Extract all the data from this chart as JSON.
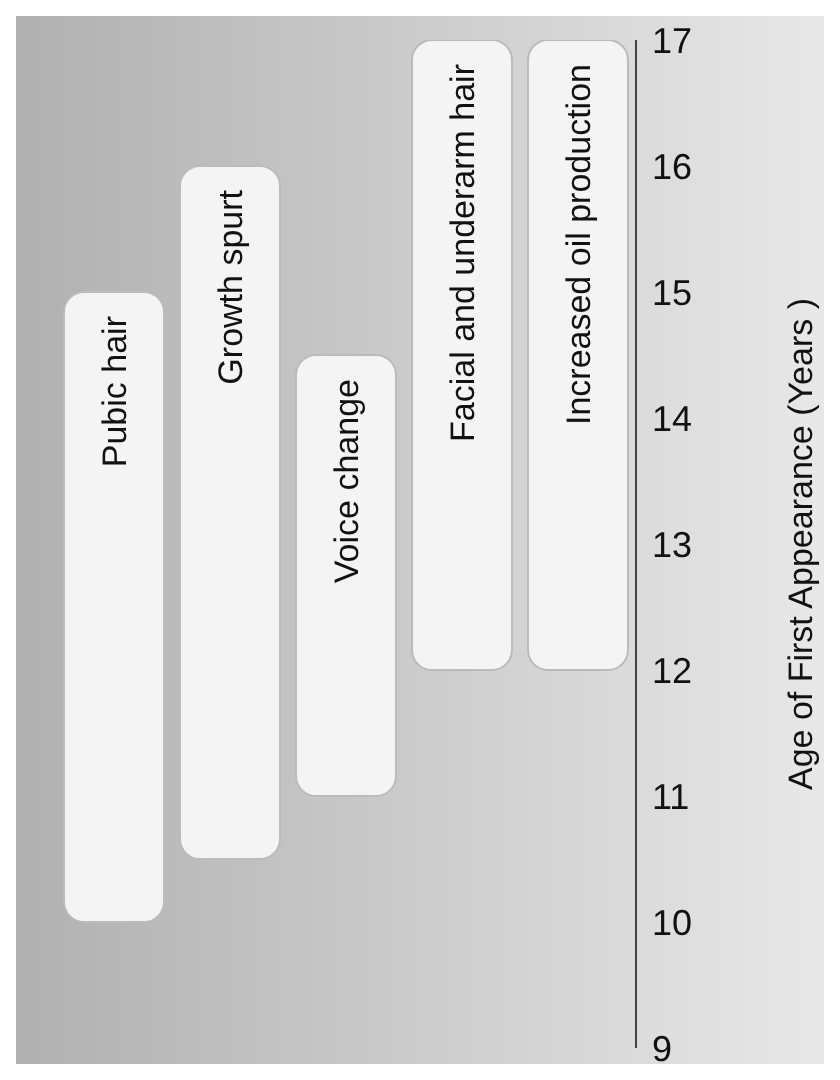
{
  "chart_data": {
    "type": "bar",
    "ylabel": "Age of First Appearance (Years )",
    "categories": [
      "Pubic hair",
      "Growth spurt",
      "Voice change",
      "Facial and underarm hair",
      "Increased oil production"
    ],
    "base": [
      10,
      10.5,
      11,
      12,
      12
    ],
    "values": [
      5,
      5.5,
      3.5,
      5,
      5
    ],
    "color": "#f4f4f4",
    "ylim": [
      9,
      17
    ],
    "yticks": [
      9,
      10,
      11,
      12,
      13,
      14,
      15,
      16,
      17
    ],
    "grid": false
  }
}
